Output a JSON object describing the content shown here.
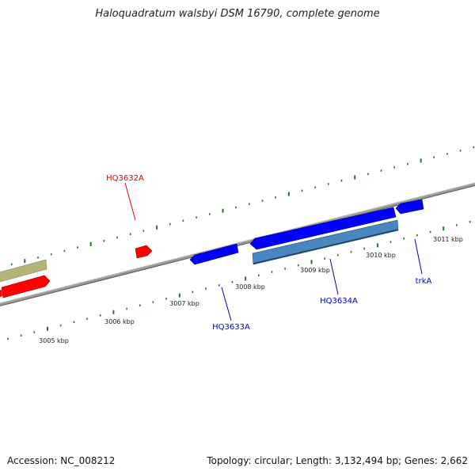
{
  "title": "Haloquadratum walsbyi DSM 16790, complete genome",
  "accession_text": "Accession: NC_008212",
  "summary_text": "Topology: circular; Length: 3,132,494 bp; Genes: 2,662",
  "colors": {
    "backbone": "#808080",
    "tick": "#1a7a1a",
    "forward_gene": "#ff0000",
    "reverse_gene": "#0000ff",
    "rna_gene": "#b5b27a",
    "pseudo_gene": "#4a86c0",
    "forward_label": "#dd0000",
    "reverse_label": "#0000cc"
  },
  "scale_labels": [
    "3005 kbp",
    "3006 kbp",
    "3007 kbp",
    "3008 kbp",
    "3009 kbp",
    "3010 kbp",
    "3011 kbp"
  ],
  "gene_labels": [
    {
      "name": "HQ3632A",
      "strand": "forward"
    },
    {
      "name": "HQ3633A",
      "strand": "reverse"
    },
    {
      "name": "HQ3634A",
      "strand": "reverse"
    },
    {
      "name": "trkA",
      "strand": "reverse"
    }
  ]
}
